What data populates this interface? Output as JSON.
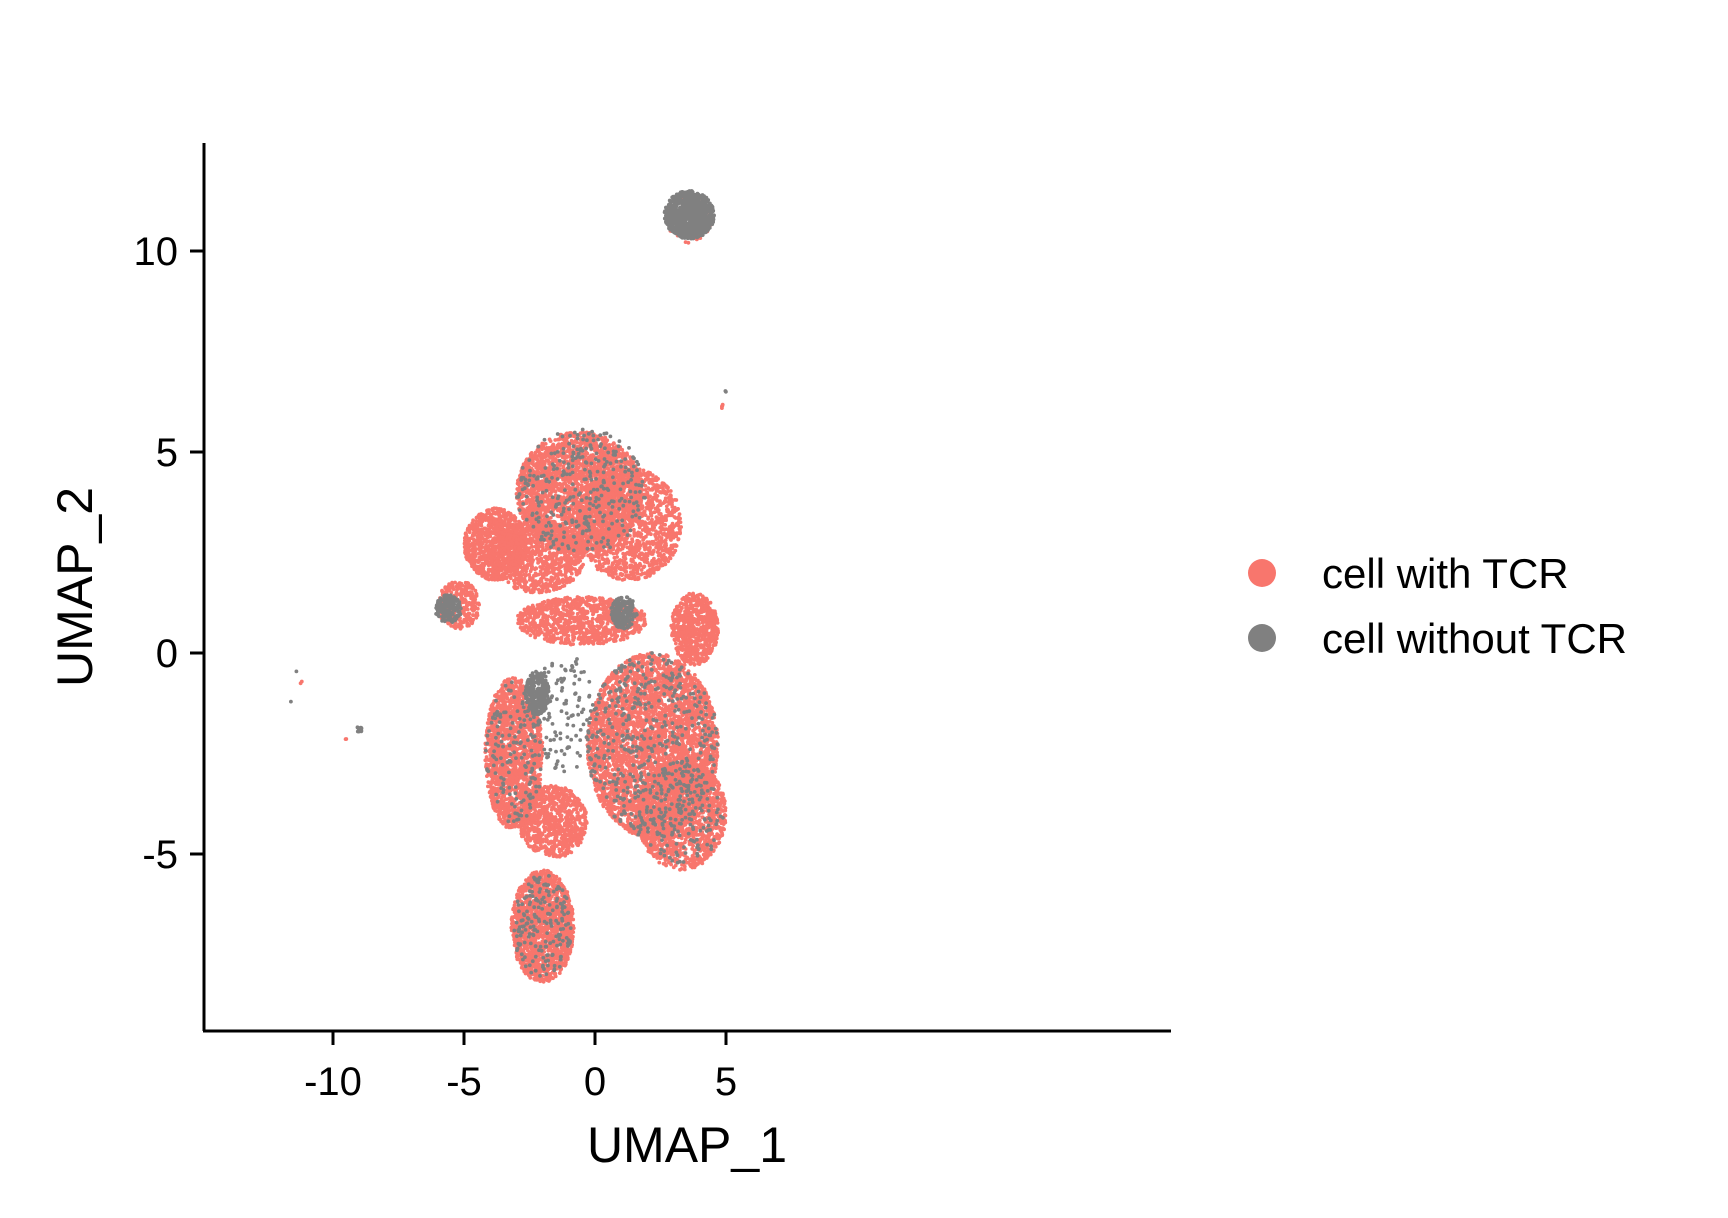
{
  "chart_data": {
    "type": "scatter",
    "xlabel": "UMAP_1",
    "ylabel": "UMAP_2",
    "xlim": [
      -12.5,
      6
    ],
    "ylim": [
      -9.4,
      12.7
    ],
    "x_ticks": [
      {
        "value": -10,
        "label": "-10"
      },
      {
        "value": -5,
        "label": "-5"
      },
      {
        "value": 0,
        "label": "0"
      },
      {
        "value": 5,
        "label": "5"
      }
    ],
    "y_ticks": [
      {
        "value": -5,
        "label": "-5"
      },
      {
        "value": 0,
        "label": "0"
      },
      {
        "value": 5,
        "label": "5"
      },
      {
        "value": 10,
        "label": "10"
      }
    ],
    "grid": false,
    "legend_position": "right",
    "series": [
      {
        "name": "cell with TCR",
        "color": "#F8766D",
        "clusters": [
          {
            "cx": -0.6,
            "cy": 4.0,
            "rx": 2.4,
            "ry": 1.5,
            "n": 2600
          },
          {
            "cx": 1.3,
            "cy": 3.2,
            "rx": 2.0,
            "ry": 1.4,
            "n": 1400
          },
          {
            "cx": -3.8,
            "cy": 2.7,
            "rx": 1.2,
            "ry": 0.9,
            "n": 900
          },
          {
            "cx": -5.2,
            "cy": 1.2,
            "rx": 0.8,
            "ry": 0.6,
            "n": 300
          },
          {
            "cx": -2.2,
            "cy": 2.4,
            "rx": 1.8,
            "ry": 0.9,
            "n": 1000
          },
          {
            "cx": -0.5,
            "cy": 0.8,
            "rx": 2.5,
            "ry": 0.6,
            "n": 900
          },
          {
            "cx": 3.8,
            "cy": 0.6,
            "rx": 0.9,
            "ry": 0.9,
            "n": 700
          },
          {
            "cx": 2.2,
            "cy": -2.3,
            "rx": 2.5,
            "ry": 2.3,
            "n": 3800
          },
          {
            "cx": 3.3,
            "cy": -4.0,
            "rx": 1.7,
            "ry": 1.4,
            "n": 1400
          },
          {
            "cx": -3.1,
            "cy": -2.5,
            "rx": 1.1,
            "ry": 1.9,
            "n": 1700
          },
          {
            "cx": -2.0,
            "cy": -6.8,
            "rx": 1.2,
            "ry": 1.4,
            "n": 1500
          },
          {
            "cx": -1.6,
            "cy": -4.2,
            "rx": 1.3,
            "ry": 0.9,
            "n": 800
          },
          {
            "cx": 3.6,
            "cy": 10.8,
            "rx": 0.9,
            "ry": 0.6,
            "n": 120
          },
          {
            "cx": 4.88,
            "cy": 6.15,
            "rx": 0.05,
            "ry": 0.1,
            "n": 4
          },
          {
            "cx": -11.2,
            "cy": -0.75,
            "rx": 0.05,
            "ry": 0.05,
            "n": 2
          },
          {
            "cx": -9.5,
            "cy": -2.1,
            "rx": 0.05,
            "ry": 0.05,
            "n": 2
          }
        ]
      },
      {
        "name": "cell without TCR",
        "color": "#808080",
        "clusters": [
          {
            "cx": 3.6,
            "cy": 10.9,
            "rx": 0.95,
            "ry": 0.6,
            "n": 900
          },
          {
            "cx": -2.2,
            "cy": -1.0,
            "rx": 0.45,
            "ry": 0.55,
            "n": 260
          },
          {
            "cx": -5.6,
            "cy": 1.1,
            "rx": 0.5,
            "ry": 0.35,
            "n": 180
          },
          {
            "cx": 1.1,
            "cy": 1.0,
            "rx": 0.5,
            "ry": 0.4,
            "n": 200
          },
          {
            "cx": -1.2,
            "cy": -1.5,
            "rx": 1.2,
            "ry": 1.5,
            "n": 120
          },
          {
            "cx": -0.5,
            "cy": 4.0,
            "rx": 2.5,
            "ry": 1.6,
            "n": 320
          },
          {
            "cx": 2.2,
            "cy": -2.3,
            "rx": 2.5,
            "ry": 2.3,
            "n": 450
          },
          {
            "cx": -2.0,
            "cy": -6.8,
            "rx": 1.1,
            "ry": 1.3,
            "n": 180
          },
          {
            "cx": -3.1,
            "cy": -2.5,
            "rx": 1.1,
            "ry": 1.8,
            "n": 150
          },
          {
            "cx": 3.3,
            "cy": -4.0,
            "rx": 1.6,
            "ry": 1.3,
            "n": 150
          },
          {
            "cx": -9.0,
            "cy": -1.9,
            "rx": 0.15,
            "ry": 0.06,
            "n": 14
          },
          {
            "cx": -11.6,
            "cy": -1.2,
            "rx": 0.03,
            "ry": 0.03,
            "n": 1
          },
          {
            "cx": -11.4,
            "cy": -0.45,
            "rx": 0.03,
            "ry": 0.03,
            "n": 1
          },
          {
            "cx": 4.97,
            "cy": 6.5,
            "rx": 0.03,
            "ry": 0.05,
            "n": 2
          }
        ]
      }
    ]
  }
}
